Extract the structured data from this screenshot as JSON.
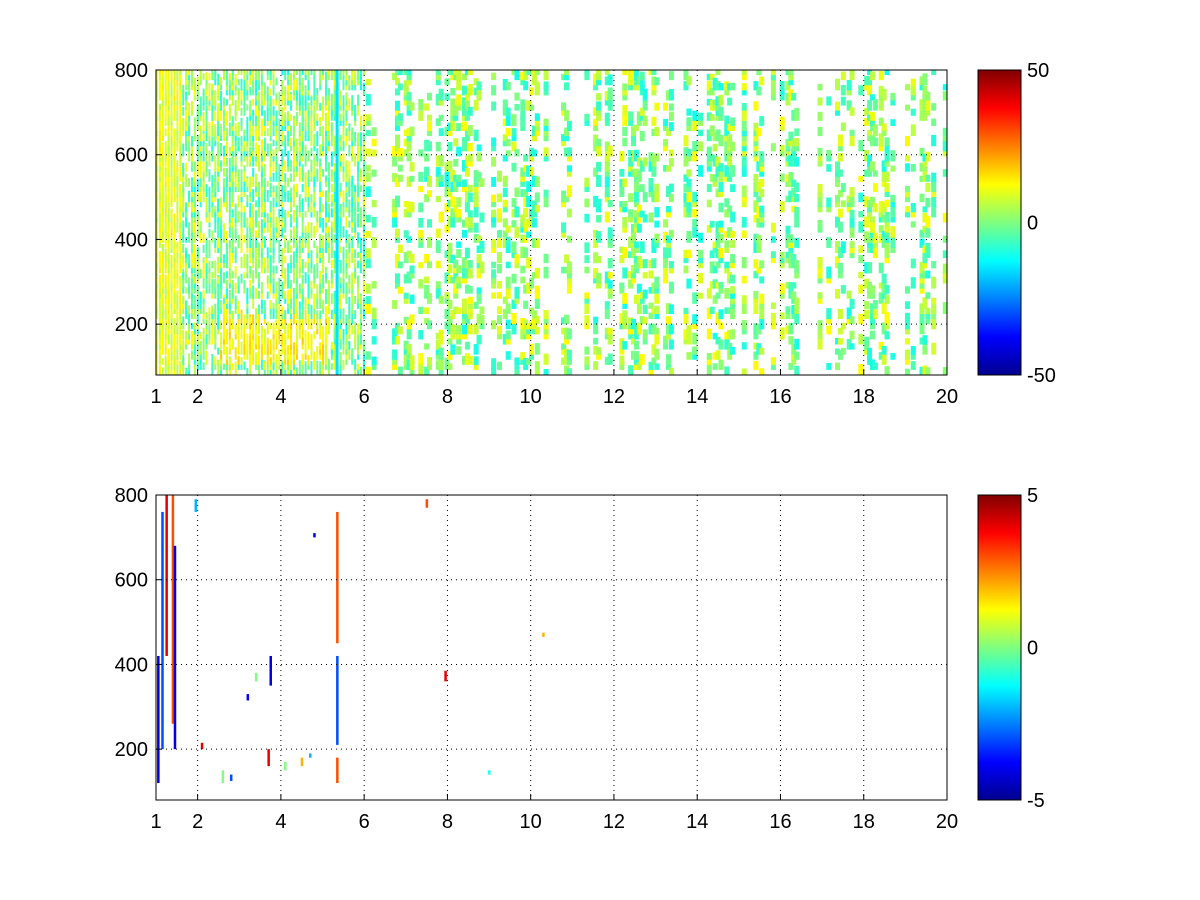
{
  "chart_data": [
    {
      "type": "heatmap",
      "title": "",
      "xlabel": "",
      "ylabel": "",
      "xlim": [
        1,
        20
      ],
      "ylim": [
        80,
        800
      ],
      "xticks": [
        1,
        2,
        4,
        6,
        8,
        10,
        12,
        14,
        16,
        18,
        20
      ],
      "yticks": [
        200,
        400,
        600,
        800
      ],
      "grid": true,
      "colormap": "jet",
      "colorbar": {
        "limits": [
          -50,
          50
        ],
        "ticks": [
          50,
          0,
          -50
        ]
      },
      "description_of_values": "sparse field of small values mostly between -20 and +20; dense activity for x < 6, strong band at y 100-200 between x 2.5 and 5.3, vertical stripe near x 5.3, sparser vertical stripes from x 6 to 20",
      "features": [
        {
          "kind": "dense_band",
          "x": [
            1,
            1.6
          ],
          "y": [
            80,
            800
          ],
          "value_range": [
            5,
            15
          ]
        },
        {
          "kind": "dense_band",
          "x": [
            1.6,
            6
          ],
          "y": [
            80,
            800
          ],
          "value_range": [
            -15,
            15
          ]
        },
        {
          "kind": "patch",
          "x": [
            2.5,
            5.2
          ],
          "y": [
            100,
            200
          ],
          "value_range": [
            8,
            18
          ]
        },
        {
          "kind": "stripe",
          "x": 5.35,
          "y": [
            80,
            800
          ],
          "value": -15
        },
        {
          "kind": "sparse_stripes",
          "x": [
            6,
            20
          ],
          "y": [
            80,
            800
          ],
          "value_range": [
            -10,
            10
          ]
        }
      ]
    },
    {
      "type": "heatmap",
      "title": "",
      "xlabel": "",
      "ylabel": "",
      "xlim": [
        1,
        20
      ],
      "ylim": [
        80,
        800
      ],
      "xticks": [
        1,
        2,
        4,
        6,
        8,
        10,
        12,
        14,
        16,
        18,
        20
      ],
      "yticks": [
        200,
        400,
        600,
        800
      ],
      "grid": true,
      "colormap": "jet",
      "colorbar": {
        "limits": [
          -5,
          5
        ],
        "ticks": [
          5,
          0,
          -5
        ]
      },
      "points": [
        {
          "x": 1.05,
          "y": [
            120,
            420
          ],
          "value": -4
        },
        {
          "x": 1.15,
          "y": [
            200,
            760
          ],
          "value": -3
        },
        {
          "x": 1.25,
          "y": [
            420,
            800
          ],
          "value": 4
        },
        {
          "x": 1.4,
          "y": [
            260,
            800
          ],
          "value": 3
        },
        {
          "x": 1.45,
          "y": [
            200,
            680
          ],
          "value": -4
        },
        {
          "x": 1.95,
          "y": [
            760,
            790
          ],
          "value": -2
        },
        {
          "x": 2.1,
          "y": [
            200,
            215
          ],
          "value": 4
        },
        {
          "x": 2.6,
          "y": [
            120,
            150
          ],
          "value": 0
        },
        {
          "x": 2.8,
          "y": [
            125,
            140
          ],
          "value": -3
        },
        {
          "x": 3.2,
          "y": [
            315,
            330
          ],
          "value": -4
        },
        {
          "x": 3.4,
          "y": [
            360,
            380
          ],
          "value": 0
        },
        {
          "x": 3.7,
          "y": [
            160,
            200
          ],
          "value": 4
        },
        {
          "x": 3.75,
          "y": [
            350,
            420
          ],
          "value": -4
        },
        {
          "x": 4.1,
          "y": [
            150,
            170
          ],
          "value": 0
        },
        {
          "x": 4.5,
          "y": [
            160,
            180
          ],
          "value": 2
        },
        {
          "x": 4.7,
          "y": [
            180,
            190
          ],
          "value": -2
        },
        {
          "x": 4.8,
          "y": [
            700,
            710
          ],
          "value": -4
        },
        {
          "x": 5.35,
          "y": [
            120,
            180
          ],
          "value": 3
        },
        {
          "x": 5.35,
          "y": [
            210,
            420
          ],
          "value": -3
        },
        {
          "x": 5.35,
          "y": [
            450,
            760
          ],
          "value": 3
        },
        {
          "x": 7.5,
          "y": [
            770,
            790
          ],
          "value": 3
        },
        {
          "x": 7.95,
          "y": [
            360,
            385
          ],
          "value": 4
        },
        {
          "x": 9.0,
          "y": [
            140,
            150
          ],
          "value": -1
        },
        {
          "x": 10.3,
          "y": [
            465,
            475
          ],
          "value": 2
        }
      ]
    }
  ]
}
